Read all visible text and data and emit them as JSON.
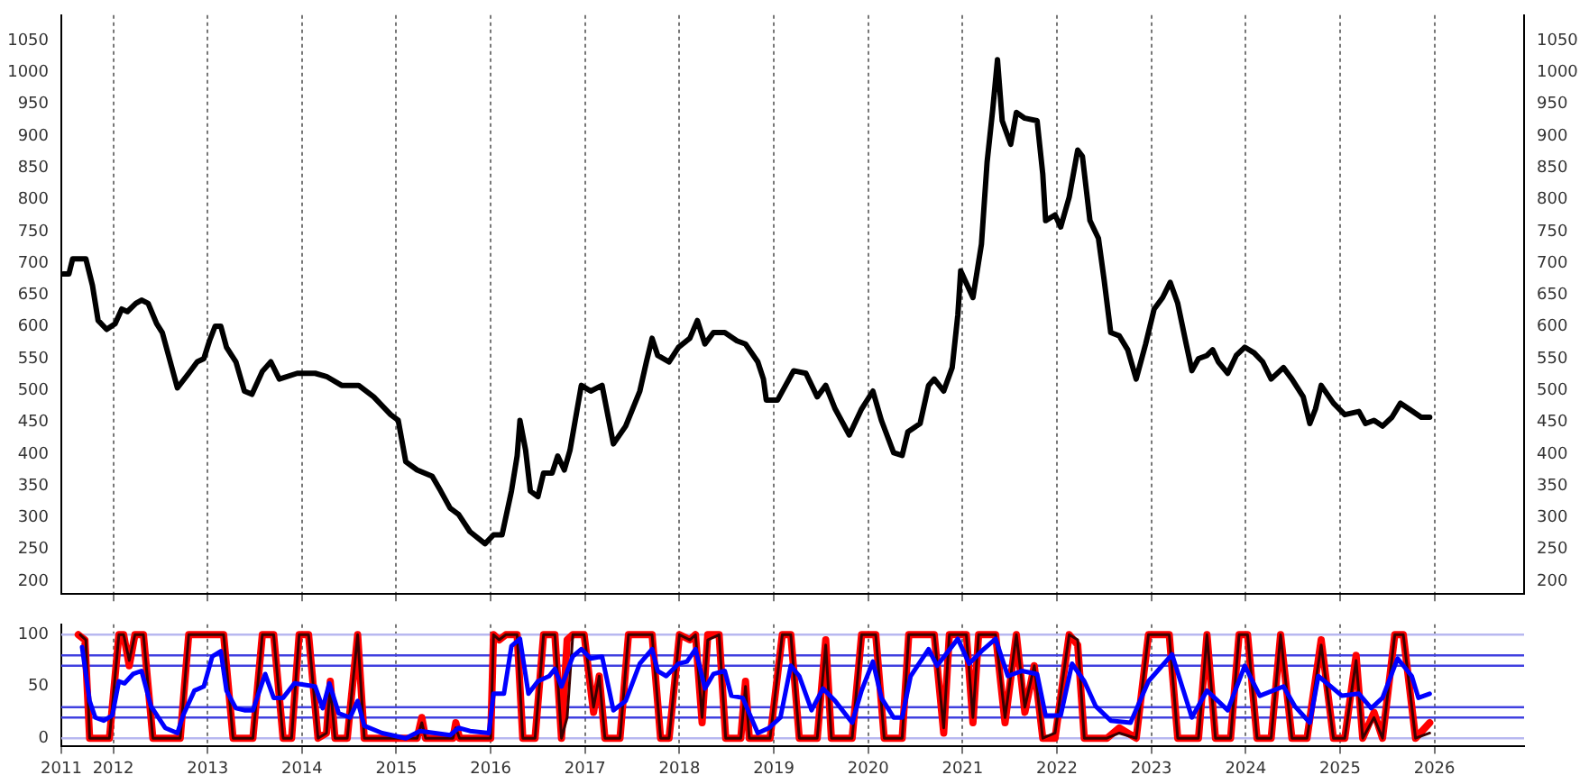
{
  "chart_data": [
    {
      "type": "line",
      "marker": "none",
      "grid": "x",
      "tick_labels": "y",
      "xlim": [
        2011.45,
        2026.95
      ],
      "xticks": [
        2012,
        2013,
        2014,
        2015,
        2016,
        2017,
        2018,
        2019,
        2020,
        2021,
        2022,
        2023,
        2024,
        2025,
        2026
      ],
      "ylim": [
        180,
        1090
      ],
      "yticks": [
        200,
        250,
        300,
        350,
        400,
        450,
        500,
        550,
        600,
        650,
        700,
        750,
        800,
        850,
        900,
        950,
        1000,
        1050
      ],
      "y2lim": [
        180,
        1090
      ],
      "y2ticks": [
        200,
        250,
        300,
        350,
        400,
        450,
        500,
        550,
        600,
        650,
        700,
        750,
        800,
        850,
        900,
        950,
        1000,
        1050
      ],
      "series": [
        {
          "color": "#000000",
          "x": [
            2011.47,
            2011.53,
            2011.57,
            2011.71,
            2011.78,
            2011.84,
            2011.93,
            2012.02,
            2012.09,
            2012.15,
            2012.24,
            2012.3,
            2012.37,
            2012.46,
            2012.52,
            2012.68,
            2012.8,
            2012.89,
            2012.96,
            2013.02,
            2013.08,
            2013.14,
            2013.2,
            2013.3,
            2013.39,
            2013.47,
            2013.58,
            2013.67,
            2013.76,
            2013.95,
            2014.14,
            2014.26,
            2014.42,
            2014.6,
            2014.76,
            2014.94,
            2015.02,
            2015.1,
            2015.22,
            2015.38,
            2015.47,
            2015.57,
            2015.66,
            2015.78,
            2015.94,
            2016.03,
            2016.12,
            2016.22,
            2016.28,
            2016.31,
            2016.37,
            2016.42,
            2016.5,
            2016.56,
            2016.65,
            2016.71,
            2016.78,
            2016.84,
            2016.96,
            2017.06,
            2017.18,
            2017.3,
            2017.43,
            2017.58,
            2017.65,
            2017.71,
            2017.77,
            2017.89,
            2017.99,
            2018.11,
            2018.19,
            2018.27,
            2018.36,
            2018.48,
            2018.61,
            2018.7,
            2018.83,
            2018.89,
            2018.92,
            2019.04,
            2019.21,
            2019.34,
            2019.46,
            2019.55,
            2019.65,
            2019.8,
            2019.93,
            2020.05,
            2020.14,
            2020.27,
            2020.36,
            2020.42,
            2020.55,
            2020.64,
            2020.7,
            2020.8,
            2020.89,
            2020.95,
            2020.98,
            2021.11,
            2021.2,
            2021.26,
            2021.32,
            2021.37,
            2021.42,
            2021.51,
            2021.57,
            2021.66,
            2021.79,
            2021.85,
            2021.88,
            2021.98,
            2022.04,
            2022.13,
            2022.22,
            2022.27,
            2022.35,
            2022.44,
            2022.5,
            2022.57,
            2022.66,
            2022.75,
            2022.84,
            2022.94,
            2023.03,
            2023.12,
            2023.2,
            2023.28,
            2023.37,
            2023.43,
            2023.5,
            2023.59,
            2023.65,
            2023.71,
            2023.81,
            2023.9,
            2023.99,
            2024.09,
            2024.18,
            2024.27,
            2024.4,
            2024.49,
            2024.61,
            2024.68,
            2024.74,
            2024.8,
            2024.93,
            2025.05,
            2025.2,
            2025.27,
            2025.36,
            2025.45,
            2025.55,
            2025.64,
            2025.73,
            2025.86,
            2025.95
          ],
          "values": [
            683,
            683,
            707,
            707,
            665,
            610,
            596,
            605,
            628,
            624,
            637,
            642,
            637,
            605,
            591,
            504,
            527,
            545,
            550,
            578,
            601,
            601,
            568,
            545,
            499,
            494,
            530,
            545,
            518,
            527,
            527,
            522,
            508,
            508,
            490,
            462,
            453,
            388,
            375,
            365,
            342,
            315,
            305,
            278,
            259,
            273,
            273,
            342,
            397,
            453,
            406,
            342,
            333,
            370,
            370,
            397,
            375,
            406,
            508,
            499,
            508,
            416,
            444,
            499,
            545,
            582,
            555,
            545,
            568,
            582,
            610,
            573,
            591,
            591,
            578,
            573,
            545,
            518,
            485,
            485,
            531,
            527,
            490,
            508,
            471,
            430,
            471,
            499,
            453,
            402,
            398,
            435,
            448,
            508,
            518,
            499,
            536,
            619,
            688,
            646,
            730,
            859,
            942,
            1020,
            924,
            887,
            937,
            928,
            924,
            840,
            767,
            776,
            757,
            804,
            878,
            868,
            767,
            739,
            674,
            591,
            586,
            564,
            518,
            573,
            628,
            646,
            670,
            637,
            573,
            531,
            550,
            555,
            564,
            545,
            527,
            555,
            568,
            559,
            545,
            518,
            536,
            518,
            490,
            448,
            471,
            508,
            480,
            462,
            467,
            448,
            453,
            444,
            458,
            480,
            471,
            458,
            458
          ]
        }
      ]
    },
    {
      "type": "line",
      "marker": "none",
      "grid": "x",
      "xlim": [
        2011.45,
        2026.95
      ],
      "xticks": [
        {
          "value": 2011.45,
          "label": "2011"
        },
        2012,
        2013,
        2014,
        2015,
        2016,
        2017,
        2018,
        2019,
        2020,
        2021,
        2022,
        2023,
        2024,
        2025,
        2026
      ],
      "ylim": [
        -8,
        110
      ],
      "yticks": [
        0,
        50,
        100
      ],
      "ref_lines": [
        {
          "axis": "y",
          "value": 100,
          "color": "#b8b8f0"
        },
        {
          "axis": "y",
          "value": 80,
          "color": "#4040e0"
        },
        {
          "axis": "y",
          "value": 70,
          "color": "#4040e0"
        },
        {
          "axis": "y",
          "value": 30,
          "color": "#4040e0"
        },
        {
          "axis": "y",
          "value": 20,
          "color": "#4040e0"
        },
        {
          "axis": "y",
          "value": 0,
          "color": "#b8b8f0"
        }
      ],
      "series": [
        {
          "color": "#ff0000",
          "x": [
            2011.63,
            2011.7,
            2011.75,
            2011.96,
            2012.06,
            2012.11,
            2012.17,
            2012.23,
            2012.32,
            2012.42,
            2012.71,
            2012.8,
            2013.17,
            2013.27,
            2013.48,
            2013.58,
            2013.7,
            2013.8,
            2013.89,
            2013.97,
            2014.07,
            2014.17,
            2014.26,
            2014.3,
            2014.35,
            2014.48,
            2014.59,
            2014.66,
            2015.22,
            2015.27,
            2015.31,
            2015.6,
            2015.63,
            2015.67,
            2016.0,
            2016.03,
            2016.09,
            2016.16,
            2016.28,
            2016.34,
            2016.47,
            2016.56,
            2016.68,
            2016.75,
            2016.81,
            2016.87,
            2016.99,
            2017.09,
            2017.15,
            2017.21,
            2017.37,
            2017.46,
            2017.71,
            2017.8,
            2017.89,
            2018.0,
            2018.11,
            2018.17,
            2018.24,
            2018.3,
            2018.42,
            2018.49,
            2018.65,
            2018.7,
            2018.74,
            2018.96,
            2019.09,
            2019.18,
            2019.27,
            2019.46,
            2019.55,
            2019.61,
            2019.83,
            2019.93,
            2020.08,
            2020.17,
            2020.36,
            2020.43,
            2020.7,
            2020.8,
            2020.86,
            2021.04,
            2021.11,
            2021.17,
            2021.35,
            2021.45,
            2021.57,
            2021.66,
            2021.76,
            2021.85,
            2021.98,
            2022.13,
            2022.22,
            2022.29,
            2022.53,
            2022.66,
            2022.84,
            2022.97,
            2023.19,
            2023.28,
            2023.5,
            2023.59,
            2023.68,
            2023.84,
            2023.93,
            2024.02,
            2024.12,
            2024.27,
            2024.37,
            2024.49,
            2024.65,
            2024.8,
            2024.93,
            2025.05,
            2025.17,
            2025.24,
            2025.36,
            2025.45,
            2025.58,
            2025.67,
            2025.8,
            2025.95
          ],
          "values": [
            100,
            95,
            0,
            0,
            100,
            100,
            70,
            100,
            100,
            0,
            0,
            100,
            100,
            0,
            0,
            100,
            100,
            0,
            0,
            100,
            100,
            0,
            5,
            55,
            0,
            0,
            100,
            0,
            0,
            20,
            0,
            0,
            15,
            0,
            0,
            100,
            95,
            100,
            100,
            0,
            0,
            100,
            100,
            0,
            95,
            100,
            100,
            25,
            60,
            0,
            0,
            100,
            100,
            0,
            0,
            100,
            95,
            100,
            15,
            100,
            100,
            0,
            0,
            55,
            0,
            0,
            100,
            100,
            0,
            0,
            95,
            0,
            0,
            100,
            100,
            0,
            0,
            100,
            100,
            5,
            100,
            100,
            15,
            100,
            100,
            15,
            100,
            25,
            70,
            0,
            0,
            100,
            90,
            0,
            0,
            10,
            0,
            100,
            100,
            0,
            0,
            100,
            0,
            0,
            100,
            100,
            0,
            0,
            100,
            0,
            0,
            95,
            0,
            0,
            80,
            0,
            25,
            0,
            100,
            100,
            0,
            15
          ]
        },
        {
          "color": "#3a0000",
          "x": [
            2011.65,
            2011.71,
            2011.75,
            2011.96,
            2012.06,
            2012.11,
            2012.17,
            2012.23,
            2012.32,
            2012.42,
            2012.71,
            2012.8,
            2013.17,
            2013.27,
            2013.48,
            2013.58,
            2013.7,
            2013.8,
            2013.89,
            2013.97,
            2014.07,
            2014.17,
            2014.26,
            2014.3,
            2014.35,
            2014.48,
            2014.59,
            2014.66,
            2015.22,
            2015.27,
            2015.31,
            2015.6,
            2015.63,
            2015.67,
            2016.0,
            2016.03,
            2016.09,
            2016.16,
            2016.28,
            2016.34,
            2016.47,
            2016.56,
            2016.68,
            2016.75,
            2016.81,
            2016.87,
            2016.99,
            2017.09,
            2017.15,
            2017.21,
            2017.37,
            2017.46,
            2017.71,
            2017.8,
            2017.89,
            2018.0,
            2018.11,
            2018.17,
            2018.24,
            2018.3,
            2018.42,
            2018.49,
            2018.65,
            2018.7,
            2018.74,
            2018.96,
            2019.09,
            2019.18,
            2019.27,
            2019.46,
            2019.55,
            2019.61,
            2019.83,
            2019.93,
            2020.08,
            2020.17,
            2020.36,
            2020.43,
            2020.7,
            2020.8,
            2020.86,
            2021.04,
            2021.11,
            2021.17,
            2021.35,
            2021.45,
            2021.57,
            2021.66,
            2021.76,
            2021.85,
            2021.98,
            2022.13,
            2022.22,
            2022.29,
            2022.53,
            2022.66,
            2022.84,
            2022.97,
            2023.19,
            2023.28,
            2023.5,
            2023.59,
            2023.68,
            2023.84,
            2023.93,
            2024.02,
            2024.12,
            2024.27,
            2024.37,
            2024.49,
            2024.65,
            2024.8,
            2024.93,
            2025.05,
            2025.17,
            2025.24,
            2025.36,
            2025.45,
            2025.58,
            2025.67,
            2025.8,
            2025.95
          ],
          "values": [
            100,
            95,
            0,
            0,
            100,
            100,
            75,
            100,
            100,
            0,
            0,
            100,
            100,
            0,
            0,
            100,
            100,
            0,
            0,
            100,
            100,
            0,
            5,
            50,
            0,
            0,
            100,
            0,
            0,
            15,
            0,
            0,
            10,
            0,
            0,
            100,
            95,
            100,
            100,
            0,
            0,
            100,
            100,
            0,
            20,
            100,
            100,
            30,
            60,
            0,
            0,
            100,
            100,
            0,
            0,
            100,
            95,
            100,
            20,
            95,
            100,
            0,
            0,
            50,
            0,
            0,
            100,
            100,
            0,
            0,
            90,
            0,
            0,
            100,
            100,
            0,
            0,
            100,
            100,
            10,
            100,
            100,
            20,
            100,
            100,
            20,
            100,
            30,
            70,
            0,
            5,
            100,
            95,
            0,
            0,
            5,
            0,
            100,
            100,
            0,
            0,
            100,
            0,
            0,
            100,
            100,
            0,
            0,
            100,
            0,
            0,
            90,
            0,
            0,
            75,
            0,
            20,
            0,
            100,
            100,
            0,
            5
          ]
        },
        {
          "color": "#0000ff",
          "x": [
            2011.67,
            2011.75,
            2011.81,
            2011.9,
            2011.99,
            2012.06,
            2012.12,
            2012.21,
            2012.3,
            2012.4,
            2012.55,
            2012.68,
            2012.74,
            2012.86,
            2012.96,
            2013.05,
            2013.14,
            2013.2,
            2013.3,
            2013.39,
            2013.48,
            2013.61,
            2013.7,
            2013.8,
            2013.92,
            2014.14,
            2014.22,
            2014.29,
            2014.39,
            2014.51,
            2014.59,
            2014.66,
            2014.85,
            2015.1,
            2015.25,
            2015.41,
            2015.57,
            2015.66,
            2015.78,
            2015.98,
            2016.03,
            2016.14,
            2016.22,
            2016.31,
            2016.4,
            2016.5,
            2016.62,
            2016.68,
            2016.75,
            2016.87,
            2016.96,
            2017.06,
            2017.18,
            2017.3,
            2017.43,
            2017.58,
            2017.71,
            2017.77,
            2017.86,
            2017.99,
            2018.08,
            2018.17,
            2018.27,
            2018.36,
            2018.48,
            2018.55,
            2018.67,
            2018.83,
            2018.95,
            2019.07,
            2019.18,
            2019.27,
            2019.4,
            2019.52,
            2019.65,
            2019.83,
            2019.93,
            2020.05,
            2020.14,
            2020.27,
            2020.36,
            2020.45,
            2020.64,
            2020.73,
            2020.95,
            2021.07,
            2021.2,
            2021.35,
            2021.48,
            2021.63,
            2021.79,
            2021.88,
            2022.04,
            2022.16,
            2022.29,
            2022.41,
            2022.57,
            2022.78,
            2022.97,
            2023.22,
            2023.34,
            2023.43,
            2023.59,
            2023.81,
            2023.99,
            2024.15,
            2024.4,
            2024.52,
            2024.68,
            2024.77,
            2025.02,
            2025.2,
            2025.33,
            2025.45,
            2025.61,
            2025.76,
            2025.83,
            2025.95
          ],
          "values": [
            88,
            36,
            20,
            17,
            22,
            55,
            53,
            62,
            65,
            31,
            10,
            5,
            22,
            46,
            50,
            79,
            84,
            46,
            29,
            27,
            27,
            62,
            39,
            39,
            53,
            50,
            29,
            53,
            24,
            20,
            36,
            12,
            5,
            0,
            7,
            5,
            3,
            10,
            7,
            5,
            43,
            43,
            89,
            96,
            43,
            55,
            60,
            67,
            50,
            79,
            86,
            77,
            79,
            27,
            36,
            72,
            86,
            65,
            60,
            72,
            74,
            86,
            48,
            62,
            65,
            41,
            39,
            5,
            10,
            20,
            70,
            60,
            27,
            48,
            36,
            15,
            46,
            74,
            39,
            20,
            20,
            60,
            86,
            70,
            96,
            72,
            84,
            96,
            60,
            65,
            62,
            22,
            22,
            72,
            55,
            31,
            17,
            15,
            55,
            81,
            46,
            20,
            46,
            27,
            70,
            41,
            50,
            31,
            15,
            60,
            41,
            43,
            29,
            39,
            77,
            60,
            39,
            43
          ]
        }
      ]
    }
  ]
}
